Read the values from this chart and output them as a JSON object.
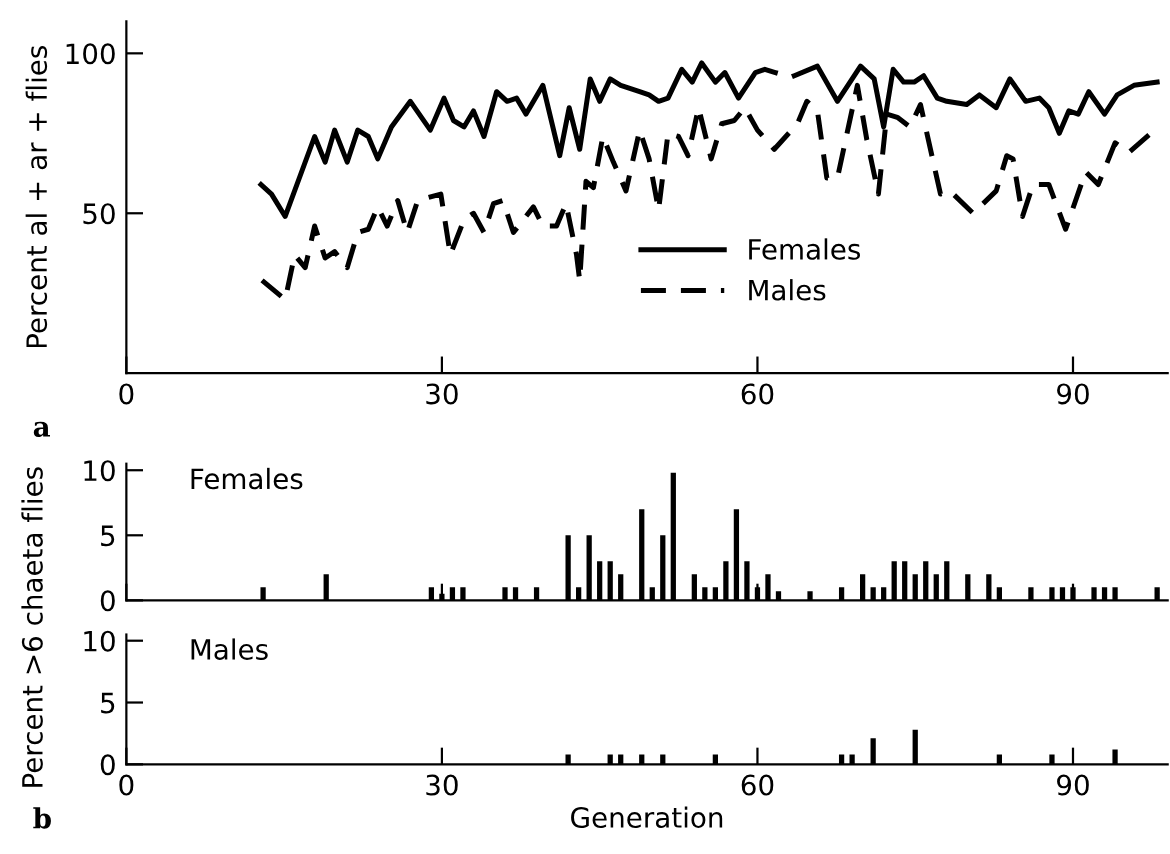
{
  "chart_data": [
    {
      "type": "line",
      "ylabel": "Percent al + ar + flies",
      "annotations": [
        "a"
      ],
      "xlim": [
        0,
        99
      ],
      "xticks": [
        0,
        30,
        60,
        90
      ],
      "ylim": [
        0,
        110
      ],
      "yticks": [
        50,
        100
      ],
      "legend": "bottom",
      "grid": false,
      "marker": "none",
      "series": [
        {
          "name": "Females",
          "color": "#000000",
          "line_style": "solid",
          "x": [
            12.8,
            13.8,
            15.1,
            17.9,
            18.9,
            19.8,
            21,
            22,
            23,
            23.9,
            25.2,
            27,
            28.9,
            30.2,
            31.1,
            32.1,
            33,
            34,
            35.2,
            36.2,
            37.1,
            38,
            39.6,
            41.2,
            42.1,
            43.1,
            44.1,
            45,
            46,
            47,
            48.8,
            49.7,
            50.6,
            51.5,
            52.8,
            53.8,
            54.7,
            56,
            56.9,
            58.2,
            59.8,
            60.7,
            61.7,
            62.6,
            63.5,
            65.7,
            67.6,
            69.8,
            71.1,
            72,
            72.9,
            73.9,
            74.9,
            75.8,
            77.1,
            78,
            79.9,
            81.1,
            82.7,
            84,
            85.5,
            86.8,
            87.7,
            88.7,
            89.6,
            90.5,
            91.5,
            93,
            94.2,
            95.8,
            98
          ],
          "values": [
            59,
            56,
            49,
            74,
            66,
            76,
            66,
            76,
            74,
            67,
            77,
            85,
            76,
            86,
            79,
            77,
            82,
            74,
            88,
            85,
            86,
            81,
            90,
            68,
            83,
            70,
            92,
            85,
            92,
            90,
            88,
            87,
            85,
            86,
            95,
            91,
            97,
            91,
            94,
            86,
            94,
            95,
            94,
            null,
            93,
            96,
            85,
            96,
            92,
            77,
            95,
            91,
            91,
            93,
            86,
            85,
            84,
            87,
            83,
            92,
            85,
            86,
            83,
            75,
            82,
            81,
            88,
            81,
            87,
            90,
            91
          ]
        },
        {
          "name": "Males",
          "color": "#000000",
          "line_style": "dashed",
          "x": [
            12.9,
            15.1,
            16,
            17,
            17.9,
            18.9,
            19.8,
            21,
            22,
            23,
            23.9,
            24.8,
            25.8,
            26.7,
            27.7,
            29.9,
            30.8,
            32.1,
            33,
            34,
            34.9,
            35.8,
            36.8,
            38.7,
            39.6,
            40.9,
            41.8,
            42.8,
            43.1,
            43.7,
            44.4,
            45.3,
            46.3,
            47.5,
            48.8,
            49.7,
            50.6,
            51.5,
            52.5,
            53.4,
            54.4,
            55.6,
            56.6,
            57.8,
            58.8,
            60,
            61.6,
            63.8,
            64.7,
            65.7,
            66.6,
            67.6,
            69.5,
            70.4,
            71.5,
            72.3,
            73.3,
            74.5,
            75.5,
            77.4,
            78.3,
            80.5,
            82.7,
            83.7,
            84.3,
            85.2,
            86.2,
            87.7,
            89.3,
            91.2,
            92.4,
            94,
            95.3,
            97.4
          ],
          "values": [
            29,
            23,
            37,
            33,
            46,
            36,
            38,
            33,
            44,
            45,
            52,
            46,
            54,
            44,
            54,
            56,
            37,
            48,
            50,
            44,
            53,
            54,
            44,
            52,
            46,
            46,
            53,
            37,
            29,
            60,
            58,
            74,
            66,
            57,
            76,
            67,
            51,
            75,
            74,
            68,
            83,
            67,
            78,
            79,
            83,
            76,
            70,
            78,
            85,
            82,
            61,
            61,
            90,
            73,
            56,
            81,
            80,
            77,
            84,
            56,
            57,
            50,
            57,
            68,
            67,
            49,
            59,
            59,
            45,
            63,
            59,
            72,
            69,
            75
          ]
        }
      ]
    },
    {
      "type": "bar",
      "title": "Females",
      "ylabel": "Percent >6 chaeta flies",
      "xlim": [
        0,
        99
      ],
      "xticks": [
        0,
        30,
        60,
        90
      ],
      "ylim": [
        0,
        10.5
      ],
      "yticks": [
        0,
        5,
        10
      ],
      "tick_labels": "y",
      "grid": false,
      "color": "#000000",
      "x": [
        13,
        19,
        29,
        30,
        31,
        32,
        36,
        37,
        39,
        42,
        43,
        44,
        45,
        46,
        47,
        49,
        50,
        51,
        52,
        54,
        55,
        56,
        57,
        58,
        59,
        60,
        61,
        62,
        65,
        68,
        70,
        71,
        72,
        73,
        74,
        75,
        76,
        77,
        78,
        80,
        82,
        83,
        86,
        88,
        89,
        90,
        92,
        93,
        94,
        98
      ],
      "values": [
        1,
        2,
        1,
        0.5,
        1,
        1,
        1,
        1,
        1,
        5,
        1,
        5,
        3,
        3,
        2,
        7,
        1,
        5,
        9.8,
        2,
        1,
        1,
        3,
        7,
        3,
        1,
        2,
        0.7,
        0.7,
        1,
        2,
        1,
        1,
        3,
        3,
        2,
        3,
        2,
        3,
        2,
        2,
        1,
        1,
        1,
        1,
        1,
        1,
        1,
        1,
        1
      ]
    },
    {
      "type": "bar",
      "title": "Males",
      "xlabel": "Generation",
      "annotations": [
        "b"
      ],
      "xlim": [
        0,
        99
      ],
      "xticks": [
        0,
        30,
        60,
        90
      ],
      "ylim": [
        0,
        10.5
      ],
      "yticks": [
        0,
        5,
        10
      ],
      "grid": false,
      "color": "#000000",
      "x": [
        42,
        46,
        47,
        49,
        51,
        56,
        68,
        69,
        71,
        75,
        83,
        88,
        94
      ],
      "values": [
        0.8,
        0.8,
        0.8,
        0.8,
        0.8,
        0.8,
        0.8,
        0.8,
        2.1,
        2.8,
        0.8,
        0.8,
        1.2
      ]
    }
  ]
}
